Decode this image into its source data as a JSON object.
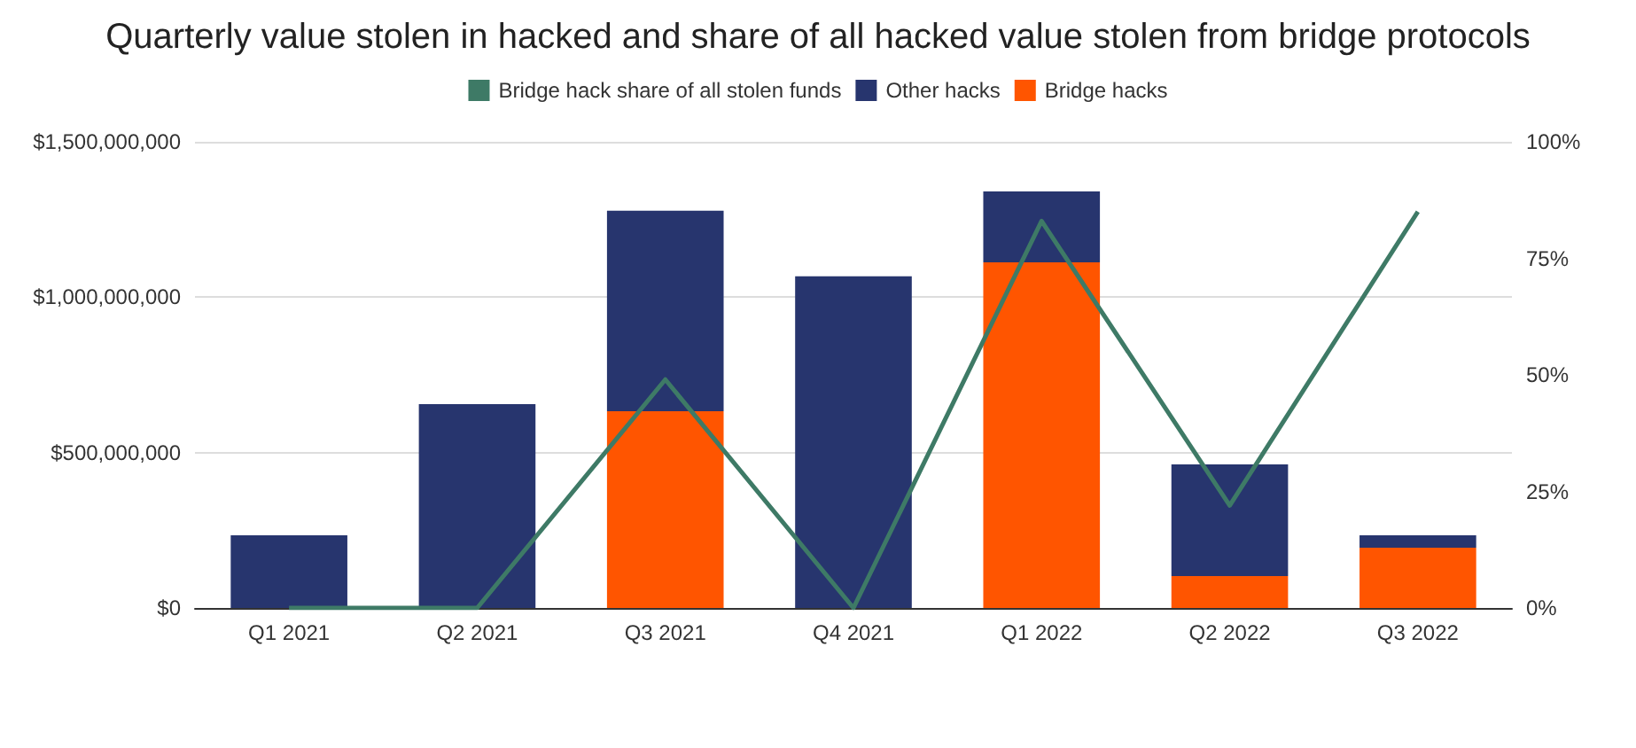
{
  "chart_data": {
    "type": "bar",
    "title": "Quarterly value stolen in hacked and share of all hacked value stolen from bridge protocols",
    "categories": [
      "Q1 2021",
      "Q2 2021",
      "Q3 2021",
      "Q4 2021",
      "Q1 2022",
      "Q2 2022",
      "Q3 2022"
    ],
    "stacked": true,
    "series": [
      {
        "name": "Bridge hacks",
        "color": "#ff5500",
        "values": [
          0,
          0,
          633000000,
          0,
          1112000000,
          103000000,
          194000000
        ]
      },
      {
        "name": "Other hacks",
        "color": "#27356e",
        "values": [
          234000000,
          656000000,
          645000000,
          1067000000,
          228000000,
          359000000,
          40000000
        ]
      },
      {
        "name": "Bridge hack share of all stolen funds",
        "type": "line",
        "axis": "y2",
        "color": "#3e7a66",
        "values": [
          0,
          0,
          49,
          0,
          83,
          22,
          85
        ]
      }
    ],
    "ylim": [
      0,
      1500000000
    ],
    "yticks": [
      {
        "value": 0,
        "label": "$0"
      },
      {
        "value": 500000000,
        "label": "$500,000,000"
      },
      {
        "value": 1000000000,
        "label": "$1,000,000,000"
      },
      {
        "value": 1500000000,
        "label": "$1,500,000,000"
      }
    ],
    "y2lim": [
      0,
      100
    ],
    "y2ticks": [
      {
        "value": 0,
        "label": "0%"
      },
      {
        "value": 25,
        "label": "25%"
      },
      {
        "value": 50,
        "label": "50%"
      },
      {
        "value": 75,
        "label": "75%"
      },
      {
        "value": 100,
        "label": "100%"
      }
    ],
    "grid": "y",
    "legend": "top",
    "marker": "none"
  }
}
